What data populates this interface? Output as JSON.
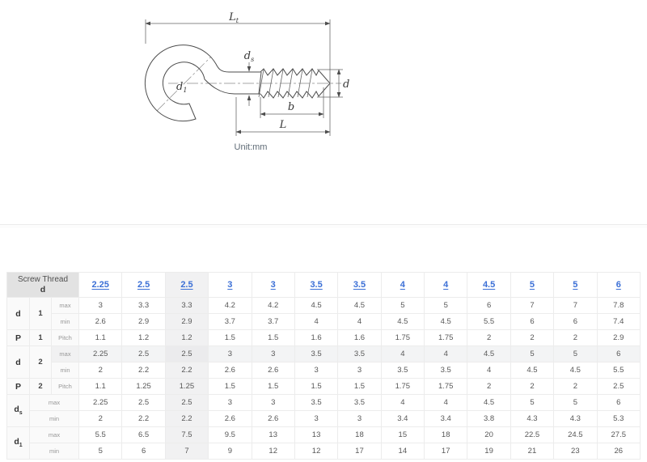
{
  "diagram": {
    "unit_note": "Unit:mm",
    "labels": {
      "total_length": {
        "main": "L",
        "sub": "t"
      },
      "shank_diameter": {
        "main": "d",
        "sub": "s"
      },
      "hook_inner_diameter": {
        "main": "d",
        "sub": "1"
      },
      "thread_diameter": {
        "main": "d"
      },
      "thread_length": {
        "main": "b"
      },
      "screw_length": {
        "main": "L"
      }
    }
  },
  "table": {
    "corner": {
      "line1": "Screw Thread",
      "line2": "d"
    },
    "header_link_color": "#3b6fd6",
    "columns": [
      "2.25",
      "2.5",
      "2.5",
      "3",
      "3",
      "3.5",
      "3.5",
      "4",
      "4",
      "4.5",
      "5",
      "5",
      "6"
    ],
    "highlight_column_index": 2,
    "shaded_row_index": 3,
    "rows": [
      {
        "labels": [
          {
            "text": "d",
            "rowspan": 2,
            "kind": "sym"
          },
          {
            "text": "1",
            "rowspan": 2,
            "kind": "idx"
          },
          {
            "text": "max",
            "kind": "qual"
          }
        ],
        "values": [
          "3",
          "3.3",
          "3.3",
          "4.2",
          "4.2",
          "4.5",
          "4.5",
          "5",
          "5",
          "6",
          "7",
          "7",
          "7.8"
        ]
      },
      {
        "labels": [
          {
            "text": "min",
            "kind": "qual"
          }
        ],
        "values": [
          "2.6",
          "2.9",
          "2.9",
          "3.7",
          "3.7",
          "4",
          "4",
          "4.5",
          "4.5",
          "5.5",
          "6",
          "6",
          "7.4"
        ]
      },
      {
        "labels": [
          {
            "text": "P",
            "kind": "sym"
          },
          {
            "text": "1",
            "kind": "idx"
          },
          {
            "text": "Pitch",
            "kind": "qual"
          }
        ],
        "values": [
          "1.1",
          "1.2",
          "1.2",
          "1.5",
          "1.5",
          "1.6",
          "1.6",
          "1.75",
          "1.75",
          "2",
          "2",
          "2",
          "2.9"
        ]
      },
      {
        "labels": [
          {
            "text": "d",
            "rowspan": 2,
            "kind": "sym"
          },
          {
            "text": "2",
            "rowspan": 2,
            "kind": "idx"
          },
          {
            "text": "max",
            "kind": "qual"
          }
        ],
        "values": [
          "2.25",
          "2.5",
          "2.5",
          "3",
          "3",
          "3.5",
          "3.5",
          "4",
          "4",
          "4.5",
          "5",
          "5",
          "6"
        ]
      },
      {
        "labels": [
          {
            "text": "min",
            "kind": "qual"
          }
        ],
        "values": [
          "2",
          "2.2",
          "2.2",
          "2.6",
          "2.6",
          "3",
          "3",
          "3.5",
          "3.5",
          "4",
          "4.5",
          "4.5",
          "5.5"
        ]
      },
      {
        "labels": [
          {
            "text": "P",
            "kind": "sym"
          },
          {
            "text": "2",
            "kind": "idx"
          },
          {
            "text": "Pitch",
            "kind": "qual"
          }
        ],
        "values": [
          "1.1",
          "1.25",
          "1.25",
          "1.5",
          "1.5",
          "1.5",
          "1.5",
          "1.75",
          "1.75",
          "2",
          "2",
          "2",
          "2.5"
        ]
      },
      {
        "labels": [
          {
            "text": "d",
            "sub": "s",
            "rowspan": 2,
            "kind": "sym"
          },
          {
            "text": "max",
            "colspan": 2,
            "kind": "qual"
          }
        ],
        "values": [
          "2.25",
          "2.5",
          "2.5",
          "3",
          "3",
          "3.5",
          "3.5",
          "4",
          "4",
          "4.5",
          "5",
          "5",
          "6"
        ]
      },
      {
        "labels": [
          {
            "text": "min",
            "colspan": 2,
            "kind": "qual"
          }
        ],
        "values": [
          "2",
          "2.2",
          "2.2",
          "2.6",
          "2.6",
          "3",
          "3",
          "3.4",
          "3.4",
          "3.8",
          "4.3",
          "4.3",
          "5.3"
        ]
      },
      {
        "labels": [
          {
            "text": "d",
            "sub": "1",
            "rowspan": 2,
            "kind": "sym"
          },
          {
            "text": "max",
            "colspan": 2,
            "kind": "qual"
          }
        ],
        "values": [
          "5.5",
          "6.5",
          "7.5",
          "9.5",
          "13",
          "13",
          "18",
          "15",
          "18",
          "20",
          "22.5",
          "24.5",
          "27.5"
        ]
      },
      {
        "labels": [
          {
            "text": "min",
            "colspan": 2,
            "kind": "qual"
          }
        ],
        "values": [
          "5",
          "6",
          "7",
          "9",
          "12",
          "12",
          "17",
          "14",
          "17",
          "19",
          "21",
          "23",
          "26"
        ]
      }
    ]
  }
}
